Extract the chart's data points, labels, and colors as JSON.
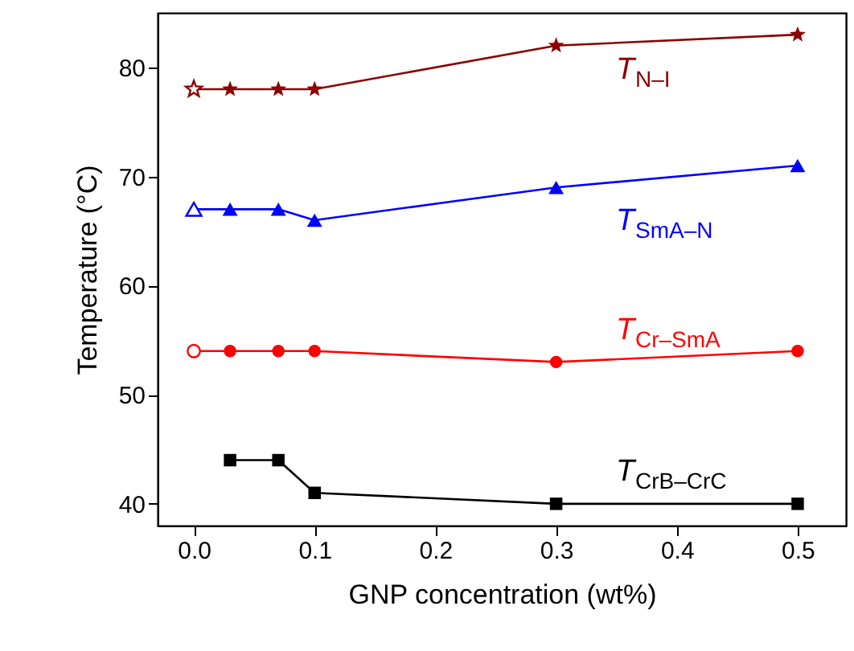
{
  "chart_data": {
    "type": "line",
    "xlabel": "GNP concentration (wt%)",
    "ylabel": "Temperature (°C)",
    "xlim": [
      -0.03,
      0.54
    ],
    "ylim": [
      38,
      85
    ],
    "xticks": [
      {
        "value": 0,
        "label": "0.0"
      },
      {
        "value": 0.1,
        "label": "0.1"
      },
      {
        "value": 0.2,
        "label": "0.2"
      },
      {
        "value": 0.3,
        "label": "0.3"
      },
      {
        "value": 0.4,
        "label": "0.4"
      },
      {
        "value": 0.5,
        "label": "0.5"
      }
    ],
    "yticks": [
      40,
      50,
      60,
      70,
      80
    ],
    "grid": false,
    "line_style": "solid",
    "series": [
      {
        "name": "T$_{N–I}$",
        "marker": "star",
        "color": "#8b0000",
        "x": [
          0,
          0.03,
          0.07,
          0.1,
          0.3,
          0.5
        ],
        "values": [
          78,
          78,
          78,
          78,
          82,
          83
        ]
      },
      {
        "name": "T$_{SmA–N}$",
        "marker": "triangle",
        "color": "#0000ff",
        "x": [
          0,
          0.03,
          0.07,
          0.1,
          0.3,
          0.5
        ],
        "values": [
          67,
          67,
          67,
          66,
          69,
          71
        ]
      },
      {
        "name": "T$_{Cr–SmA}$",
        "marker": "circle",
        "color": "#ff0000",
        "x": [
          0,
          0.03,
          0.07,
          0.1,
          0.3,
          0.5
        ],
        "values": [
          54,
          54,
          54,
          54,
          53,
          54
        ]
      },
      {
        "name": "T$_{CrB–CrC}$",
        "marker": "square",
        "color": "#000000",
        "x": [
          0.03,
          0.07,
          0.1,
          0.3,
          0.5
        ],
        "values": [
          44,
          44,
          41,
          40,
          40
        ]
      },
      {
        "type": "scatter",
        "marker": "star",
        "color": "#8b0000",
        "x": [
          0
        ],
        "values": [
          78
        ]
      },
      {
        "type": "scatter",
        "marker": "triangle",
        "color": "#0000ff",
        "x": [
          0
        ],
        "values": [
          67
        ]
      },
      {
        "type": "scatter",
        "marker": "circle",
        "color": "#ff0000",
        "x": [
          0
        ],
        "values": [
          54
        ]
      }
    ]
  }
}
